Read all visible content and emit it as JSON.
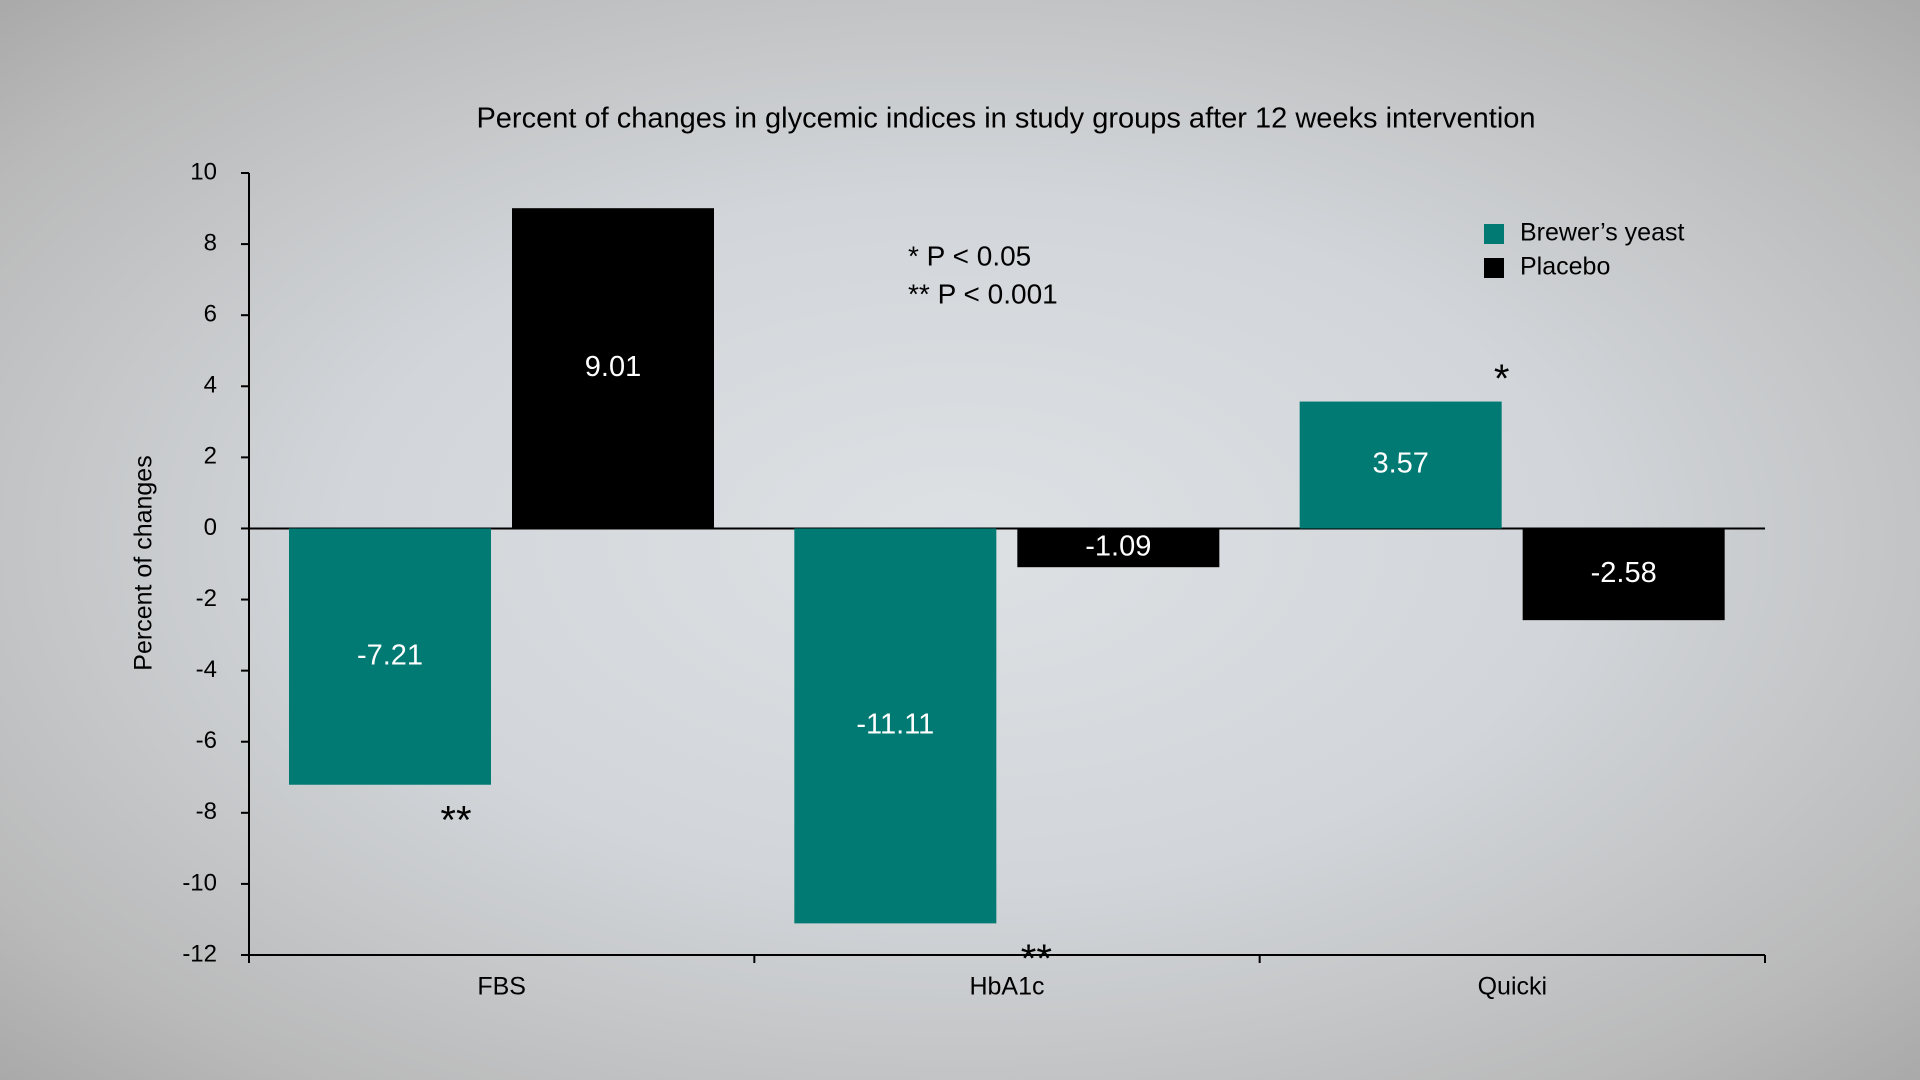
{
  "chart_data": {
    "type": "bar",
    "title": "Percent of changes in glycemic indices in study groups after 12 weeks intervention",
    "ylabel": "Percent of changes",
    "categories": [
      "FBS",
      "HbA1c",
      "Quicki"
    ],
    "series": [
      {
        "name": "Brewer’s yeast",
        "color": "#007a73",
        "values": [
          -7.21,
          -11.11,
          3.57
        ],
        "markers": [
          "**",
          "**",
          "*"
        ]
      },
      {
        "name": "Placebo",
        "color": "#000000",
        "values": [
          9.01,
          -1.09,
          -2.58
        ]
      }
    ],
    "annotations": [
      "* P < 0.05",
      "** P < 0.001"
    ],
    "ylim": [
      -12,
      10
    ],
    "yticks": [
      -12,
      -10,
      -8,
      -6,
      -4,
      -2,
      0,
      2,
      4,
      6,
      8,
      10
    ],
    "legend": "upper right",
    "grid": false
  }
}
